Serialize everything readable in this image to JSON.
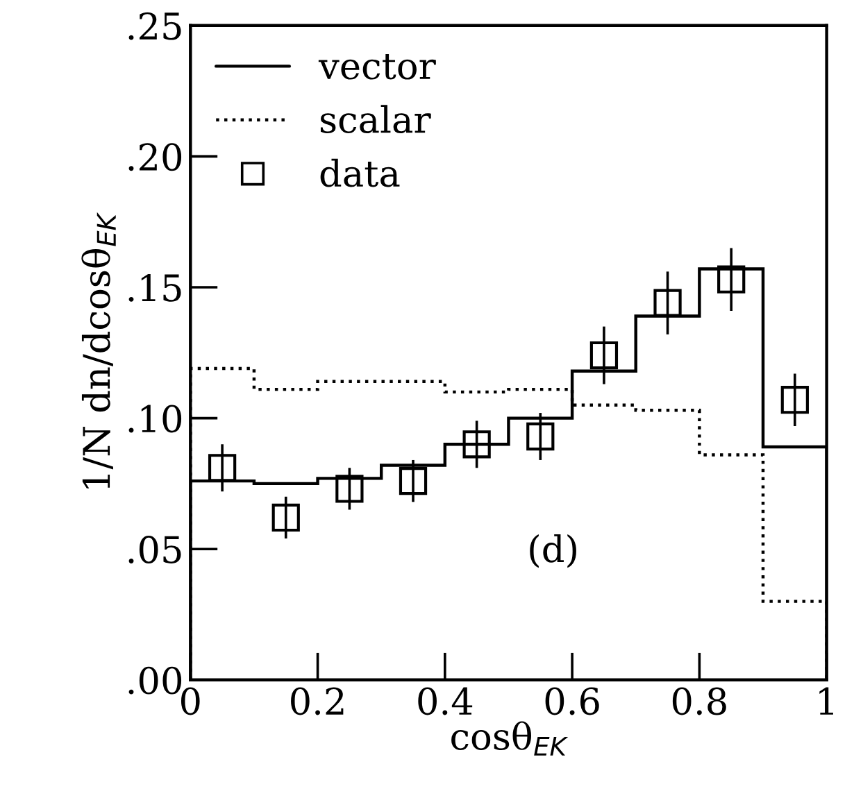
{
  "chart_data": {
    "type": "histogram",
    "xlabel": "cosθ$_{EK}$",
    "ylabel": "1/N dn/dcosθ$_{EK}$",
    "bins": [
      0,
      0.1,
      0.2,
      0.3,
      0.4,
      0.5,
      0.6,
      0.7,
      0.8,
      0.9,
      1.0
    ],
    "series": [
      {
        "name": "vector",
        "color": "#000000",
        "line_style": "solid",
        "values": [
          0.076,
          0.075,
          0.077,
          0.082,
          0.09,
          0.1,
          0.118,
          0.139,
          0.157,
          0.089
        ]
      },
      {
        "name": "scalar",
        "color": "#000000",
        "line_style": "dotted",
        "values": [
          0.119,
          0.111,
          0.114,
          0.114,
          0.11,
          0.111,
          0.105,
          0.103,
          0.086,
          0.03
        ]
      },
      {
        "name": "data",
        "type": "scatter",
        "color": "#000000",
        "marker": "square",
        "x": [
          0.05,
          0.15,
          0.25,
          0.35,
          0.45,
          0.55,
          0.65,
          0.75,
          0.85,
          0.95
        ],
        "values": [
          0.081,
          0.062,
          0.073,
          0.076,
          0.09,
          0.093,
          0.124,
          0.144,
          0.153,
          0.107
        ],
        "errors": [
          0.009,
          0.008,
          0.008,
          0.008,
          0.009,
          0.009,
          0.011,
          0.012,
          0.012,
          0.01
        ]
      }
    ],
    "annotations": [
      "(d)"
    ],
    "xlim": [
      0,
      1
    ],
    "ylim": [
      0,
      0.25
    ],
    "xticks": [
      0,
      0.2,
      0.4,
      0.6,
      0.8,
      1
    ],
    "yticks": [
      {
        "value": 0,
        "label": ".00"
      },
      {
        "value": 0.05,
        "label": ".05"
      },
      {
        "value": 0.1,
        "label": ".10"
      },
      {
        "value": 0.15,
        "label": ".15"
      },
      {
        "value": 0.2,
        "label": ".20"
      },
      {
        "value": 0.25,
        "label": ".25"
      }
    ],
    "legend": "top left"
  }
}
